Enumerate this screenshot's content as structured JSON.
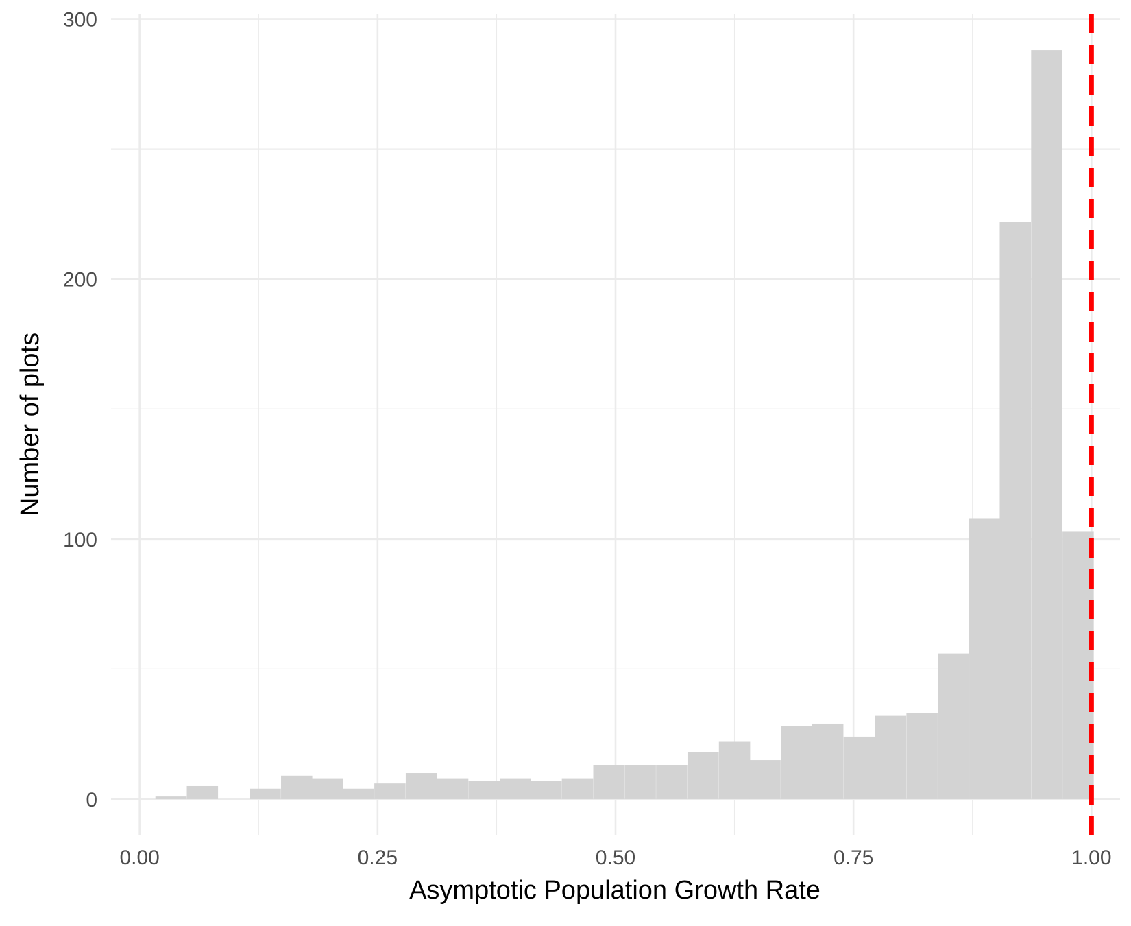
{
  "chart_data": {
    "type": "bar",
    "subtype": "histogram",
    "title": "",
    "xlabel": "Asymptotic Population Growth Rate",
    "ylabel": "Number of plots",
    "xlim": [
      -0.03,
      1.03
    ],
    "ylim": [
      -14,
      302
    ],
    "x_ticks": [
      {
        "value": 0.0,
        "label": "0.00"
      },
      {
        "value": 0.25,
        "label": "0.25"
      },
      {
        "value": 0.5,
        "label": "0.50"
      },
      {
        "value": 0.75,
        "label": "0.75"
      },
      {
        "value": 1.0,
        "label": "1.00"
      }
    ],
    "y_ticks": [
      {
        "value": 0,
        "label": "0"
      },
      {
        "value": 100,
        "label": "100"
      },
      {
        "value": 200,
        "label": "200"
      },
      {
        "value": 300,
        "label": "300"
      }
    ],
    "grid": true,
    "bin_width": 0.0328,
    "bins": [
      {
        "x": 0.033,
        "count": 1
      },
      {
        "x": 0.066,
        "count": 5
      },
      {
        "x": 0.099,
        "count": 0
      },
      {
        "x": 0.132,
        "count": 4
      },
      {
        "x": 0.165,
        "count": 9
      },
      {
        "x": 0.197,
        "count": 8
      },
      {
        "x": 0.23,
        "count": 4
      },
      {
        "x": 0.263,
        "count": 6
      },
      {
        "x": 0.296,
        "count": 10
      },
      {
        "x": 0.329,
        "count": 8
      },
      {
        "x": 0.362,
        "count": 7
      },
      {
        "x": 0.395,
        "count": 8
      },
      {
        "x": 0.427,
        "count": 7
      },
      {
        "x": 0.46,
        "count": 8
      },
      {
        "x": 0.493,
        "count": 13
      },
      {
        "x": 0.526,
        "count": 13
      },
      {
        "x": 0.559,
        "count": 13
      },
      {
        "x": 0.592,
        "count": 18
      },
      {
        "x": 0.625,
        "count": 22
      },
      {
        "x": 0.657,
        "count": 15
      },
      {
        "x": 0.69,
        "count": 28
      },
      {
        "x": 0.723,
        "count": 29
      },
      {
        "x": 0.756,
        "count": 24
      },
      {
        "x": 0.789,
        "count": 32
      },
      {
        "x": 0.822,
        "count": 33
      },
      {
        "x": 0.855,
        "count": 56
      },
      {
        "x": 0.888,
        "count": 108
      },
      {
        "x": 0.92,
        "count": 222
      },
      {
        "x": 0.953,
        "count": 288
      },
      {
        "x": 0.986,
        "count": 103
      }
    ],
    "reference_line": {
      "x": 1.0,
      "style": "dashed",
      "color": "#ff0000"
    },
    "colors": {
      "bar": "#d3d3d3",
      "grid": "#ebebeb",
      "reference": "#ff0000"
    }
  }
}
